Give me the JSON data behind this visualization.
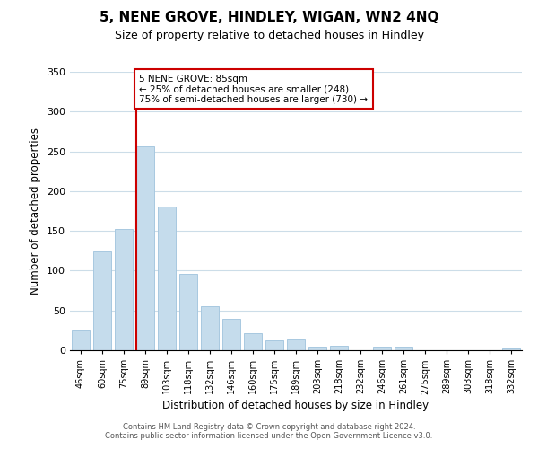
{
  "title": "5, NENE GROVE, HINDLEY, WIGAN, WN2 4NQ",
  "subtitle": "Size of property relative to detached houses in Hindley",
  "xlabel": "Distribution of detached houses by size in Hindley",
  "ylabel": "Number of detached properties",
  "bar_labels": [
    "46sqm",
    "60sqm",
    "75sqm",
    "89sqm",
    "103sqm",
    "118sqm",
    "132sqm",
    "146sqm",
    "160sqm",
    "175sqm",
    "189sqm",
    "203sqm",
    "218sqm",
    "232sqm",
    "246sqm",
    "261sqm",
    "275sqm",
    "289sqm",
    "303sqm",
    "318sqm",
    "332sqm"
  ],
  "bar_values": [
    25,
    124,
    152,
    256,
    181,
    96,
    55,
    40,
    22,
    12,
    14,
    5,
    6,
    0,
    5,
    5,
    0,
    0,
    0,
    0,
    2
  ],
  "bar_color": "#c5dcec",
  "bar_edge_color": "#a8c8e0",
  "vline_color": "#cc0000",
  "annotation_title": "5 NENE GROVE: 85sqm",
  "annotation_line1": "← 25% of detached houses are smaller (248)",
  "annotation_line2": "75% of semi-detached houses are larger (730) →",
  "annotation_box_color": "#ffffff",
  "annotation_border_color": "#cc0000",
  "ylim": [
    0,
    350
  ],
  "yticks": [
    0,
    50,
    100,
    150,
    200,
    250,
    300,
    350
  ],
  "footer1": "Contains HM Land Registry data © Crown copyright and database right 2024.",
  "footer2": "Contains public sector information licensed under the Open Government Licence v3.0.",
  "bg_color": "#ffffff",
  "grid_color": "#ccdde8"
}
